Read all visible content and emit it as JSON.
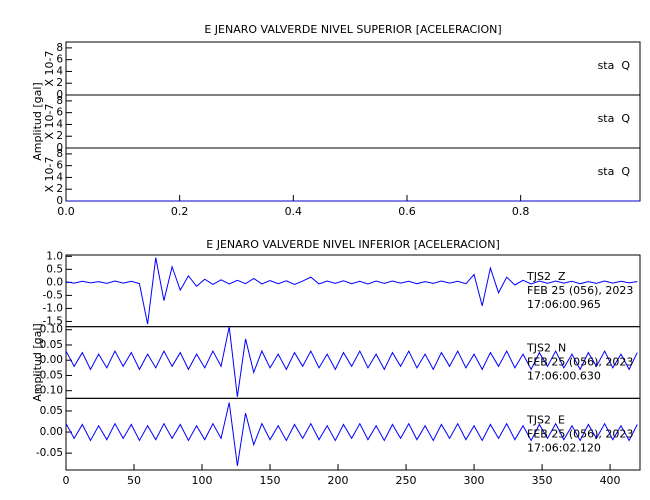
{
  "chart_data": [
    {
      "type": "line",
      "title": "E JENARO VALVERDE NIVEL SUPERIOR [ACELERACION]",
      "ylabel": "Amplitud [gal]",
      "xlim": [
        0,
        1.01
      ],
      "xticks": [
        {
          "value": 0,
          "label": "0.0"
        },
        {
          "value": 0.2,
          "label": "0.2"
        },
        {
          "value": 0.4,
          "label": "0.4"
        },
        {
          "value": 0.6,
          "label": "0.6"
        },
        {
          "value": 0.8,
          "label": "0.8"
        }
      ],
      "x": [
        0,
        1.01
      ],
      "panels": [
        {
          "scale_label": "X 10-7",
          "ylim": [
            0,
            9
          ],
          "yticks": [
            0,
            2,
            4,
            6,
            8
          ],
          "series": [
            {
              "name": "sta  Q",
              "color": "#0000cc",
              "values": [
                0,
                0
              ]
            }
          ]
        },
        {
          "scale_label": "X 10-7",
          "ylim": [
            0,
            9
          ],
          "yticks": [
            0,
            2,
            4,
            6,
            8
          ],
          "series": [
            {
              "name": "sta  Q",
              "color": "#0000cc",
              "values": [
                0,
                0
              ]
            }
          ]
        },
        {
          "scale_label": "X 10-7",
          "ylim": [
            0,
            9
          ],
          "yticks": [
            0,
            2,
            4,
            6,
            8
          ],
          "series": [
            {
              "name": "sta  Q",
              "color": "#0000cc",
              "values": [
                0,
                0
              ]
            }
          ]
        }
      ]
    },
    {
      "type": "line",
      "title": "E JENARO VALVERDE NIVEL INFERIOR [ACELERACION]",
      "ylabel": "Amplitud [gal]",
      "xlim": [
        0,
        422
      ],
      "xticks": [
        0,
        50,
        100,
        150,
        200,
        250,
        300,
        350,
        400
      ],
      "x": [
        0,
        6,
        12,
        18,
        24,
        30,
        36,
        42,
        48,
        54,
        60,
        66,
        72,
        78,
        84,
        90,
        96,
        102,
        108,
        114,
        120,
        126,
        132,
        138,
        144,
        150,
        156,
        162,
        168,
        174,
        180,
        186,
        192,
        198,
        204,
        210,
        216,
        222,
        228,
        234,
        240,
        246,
        252,
        258,
        264,
        270,
        276,
        282,
        288,
        294,
        300,
        306,
        312,
        318,
        324,
        330,
        336,
        342,
        348,
        354,
        360,
        366,
        372,
        378,
        384,
        390,
        396,
        402,
        408,
        414,
        420
      ],
      "panels": [
        {
          "ylim": [
            -1.7,
            1.05
          ],
          "yticks": [
            {
              "value": -1.5,
              "label": "-1.5"
            },
            {
              "value": -1,
              "label": "-1.0"
            },
            {
              "value": -0.5,
              "label": "-0.5"
            },
            {
              "value": 0,
              "label": "0.0"
            },
            {
              "value": 0.5,
              "label": "0.5"
            },
            {
              "value": 1,
              "label": "1.0"
            }
          ],
          "annotations": [
            "FEB 25 (056), 2023",
            "17:06:00.965"
          ],
          "series": [
            {
              "name": "TJS2  Z",
              "color": "#0000ff",
              "values": [
                0.02,
                -0.03,
                0.04,
                -0.02,
                0.03,
                -0.04,
                0.05,
                -0.03,
                0.04,
                -0.05,
                -1.6,
                0.95,
                -0.7,
                0.6,
                -0.3,
                0.25,
                -0.15,
                0.12,
                -0.08,
                0.1,
                -0.06,
                0.08,
                -0.05,
                0.15,
                -0.06,
                0.07,
                -0.05,
                0.06,
                -0.08,
                0.05,
                0.2,
                -0.06,
                0.05,
                -0.04,
                0.06,
                -0.05,
                0.04,
                -0.06,
                0.05,
                -0.04,
                0.05,
                -0.03,
                0.04,
                -0.05,
                0.03,
                -0.04,
                0.05,
                -0.03,
                0.04,
                -0.05,
                0.3,
                -0.9,
                0.55,
                -0.4,
                0.2,
                -0.1,
                0.08,
                -0.06,
                0.05,
                -0.04,
                0.05,
                -0.03,
                0.04,
                -0.05,
                0.03,
                -0.04,
                0.05,
                -0.03,
                0.04,
                -0.02,
                0.03
              ]
            }
          ]
        },
        {
          "ylim": [
            -0.125,
            0.11
          ],
          "yticks": [
            {
              "value": -0.1,
              "label": "-0.10"
            },
            {
              "value": -0.05,
              "label": "-0.05"
            },
            {
              "value": 0,
              "label": "0.00"
            },
            {
              "value": 0.05,
              "label": "0.05"
            },
            {
              "value": 0.1,
              "label": "0.10"
            }
          ],
          "annotations": [
            "FEB 25 (056), 2023",
            "17:06:00.630"
          ],
          "series": [
            {
              "name": "TJS2  N",
              "color": "#0000ff",
              "values": [
                0.03,
                -0.02,
                0.025,
                -0.03,
                0.02,
                -0.025,
                0.03,
                -0.02,
                0.025,
                -0.03,
                0.02,
                -0.025,
                0.03,
                -0.02,
                0.025,
                -0.03,
                0.02,
                -0.025,
                0.03,
                -0.02,
                0.11,
                -0.12,
                0.07,
                -0.04,
                0.03,
                -0.025,
                0.02,
                -0.03,
                0.025,
                -0.02,
                0.03,
                -0.025,
                0.02,
                -0.03,
                0.025,
                -0.02,
                0.03,
                -0.025,
                0.02,
                -0.03,
                0.025,
                -0.02,
                0.03,
                -0.025,
                0.02,
                -0.03,
                0.025,
                -0.02,
                0.03,
                -0.025,
                0.02,
                -0.03,
                0.025,
                -0.02,
                0.03,
                -0.025,
                0.02,
                -0.03,
                0.025,
                -0.02,
                0.03,
                -0.025,
                0.02,
                -0.03,
                0.025,
                -0.02,
                0.03,
                -0.025,
                0.02,
                -0.03,
                0.025
              ]
            }
          ]
        },
        {
          "ylim": [
            -0.09,
            0.08
          ],
          "yticks": [
            {
              "value": -0.05,
              "label": "-0.05"
            },
            {
              "value": 0,
              "label": "0.00"
            },
            {
              "value": 0.05,
              "label": "0.05"
            }
          ],
          "annotations": [
            "FEB 25 (056), 2023",
            "17:06:02.120"
          ],
          "series": [
            {
              "name": "TJS2  E",
              "color": "#0000ff",
              "values": [
                0.02,
                -0.015,
                0.018,
                -0.02,
                0.015,
                -0.018,
                0.02,
                -0.015,
                0.018,
                -0.02,
                0.015,
                -0.018,
                0.02,
                -0.015,
                0.018,
                -0.02,
                0.015,
                -0.018,
                0.02,
                -0.015,
                0.07,
                -0.08,
                0.045,
                -0.03,
                0.02,
                -0.018,
                0.015,
                -0.02,
                0.018,
                -0.015,
                0.02,
                -0.018,
                0.015,
                -0.02,
                0.018,
                -0.015,
                0.02,
                -0.018,
                0.015,
                -0.02,
                0.018,
                -0.015,
                0.02,
                -0.018,
                0.015,
                -0.02,
                0.018,
                -0.015,
                0.02,
                -0.018,
                0.015,
                -0.02,
                0.018,
                -0.015,
                0.02,
                -0.018,
                0.015,
                -0.02,
                0.018,
                -0.015,
                0.02,
                -0.018,
                0.015,
                -0.02,
                0.018,
                -0.015,
                0.02,
                -0.018,
                0.015,
                -0.02,
                0.018
              ]
            }
          ]
        }
      ]
    }
  ]
}
